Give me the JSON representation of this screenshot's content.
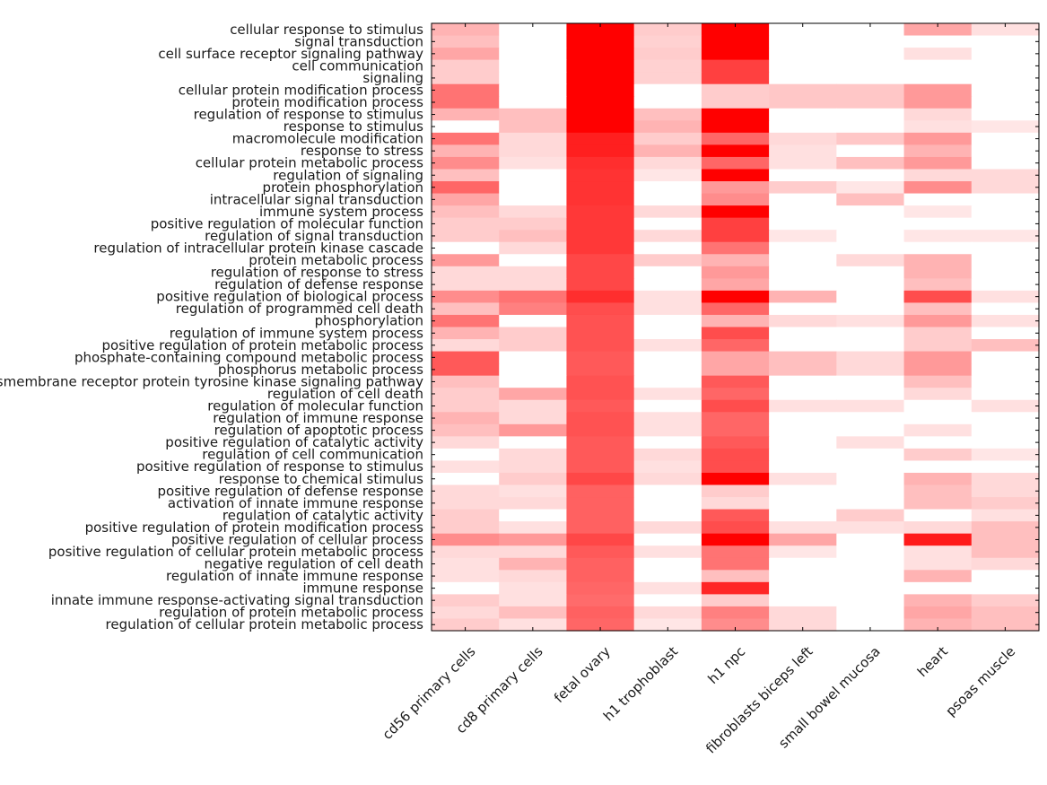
{
  "chart_data": {
    "type": "heatmap",
    "title": "",
    "xlabel": "",
    "ylabel": "",
    "colormap": {
      "low": "#ffffff",
      "high": "#ff0000"
    },
    "value_range": [
      0,
      1
    ],
    "columns": [
      "cd56 primary cells",
      "cd8 primary cells",
      "fetal ovary",
      "h1 trophoblast",
      "h1 npc",
      "fibroblasts biceps left",
      "small bowel mucosa",
      "heart",
      "psoas muscle"
    ],
    "rows": [
      "cellular response to stimulus",
      "signal transduction",
      "cell surface receptor signaling pathway",
      "cell communication",
      "signaling",
      "cellular protein modification process",
      "protein modification process",
      "regulation of response to stimulus",
      "response to stimulus",
      "macromolecule modification",
      "response to stress",
      "cellular protein metabolic process",
      "regulation of signaling",
      "protein phosphorylation",
      "intracellular signal transduction",
      "immune system process",
      "positive regulation of molecular function",
      "regulation of signal transduction",
      "regulation of intracellular protein kinase cascade",
      "protein metabolic process",
      "regulation of response to stress",
      "regulation of defense response",
      "positive regulation of biological process",
      "regulation of programmed cell death",
      "phosphorylation",
      "regulation of immune system process",
      "positive regulation of protein metabolic process",
      "phosphate-containing compound metabolic process",
      "phosphorus metabolic process",
      "transmembrane receptor protein tyrosine kinase signaling pathway",
      "regulation of cell death",
      "regulation of molecular function",
      "regulation of immune response",
      "regulation of apoptotic process",
      "positive regulation of catalytic activity",
      "regulation of cell communication",
      "positive regulation of response to stimulus",
      "response to chemical stimulus",
      "positive regulation of defense response",
      "activation of innate immune response",
      "regulation of catalytic activity",
      "positive regulation of protein modification process",
      "positive regulation of cellular process",
      "positive regulation of cellular protein metabolic process",
      "negative regulation of cell death",
      "regulation of innate immune response",
      "immune response",
      "innate immune response-activating signal transduction",
      "regulation of protein metabolic process",
      "regulation of cellular protein metabolic process"
    ],
    "values": [
      [
        0.3,
        0.0,
        1.0,
        0.2,
        1.0,
        0.0,
        0.0,
        0.35,
        0.12
      ],
      [
        0.25,
        0.0,
        1.0,
        0.18,
        1.0,
        0.0,
        0.0,
        0.0,
        0.0
      ],
      [
        0.35,
        0.0,
        1.0,
        0.2,
        1.0,
        0.0,
        0.0,
        0.12,
        0.0
      ],
      [
        0.2,
        0.0,
        1.0,
        0.18,
        0.75,
        0.0,
        0.0,
        0.0,
        0.0
      ],
      [
        0.2,
        0.0,
        1.0,
        0.18,
        0.75,
        0.0,
        0.0,
        0.0,
        0.0
      ],
      [
        0.55,
        0.0,
        1.0,
        0.0,
        0.2,
        0.22,
        0.22,
        0.4,
        0.0
      ],
      [
        0.55,
        0.0,
        1.0,
        0.0,
        0.2,
        0.22,
        0.22,
        0.4,
        0.0
      ],
      [
        0.3,
        0.25,
        1.0,
        0.25,
        1.0,
        0.0,
        0.0,
        0.15,
        0.0
      ],
      [
        0.0,
        0.25,
        1.0,
        0.3,
        1.0,
        0.0,
        0.0,
        0.12,
        0.1
      ],
      [
        0.55,
        0.15,
        0.88,
        0.2,
        0.6,
        0.15,
        0.22,
        0.4,
        0.0
      ],
      [
        0.3,
        0.15,
        0.88,
        0.3,
        1.0,
        0.12,
        0.0,
        0.3,
        0.0
      ],
      [
        0.45,
        0.12,
        0.82,
        0.15,
        0.6,
        0.12,
        0.25,
        0.4,
        0.0
      ],
      [
        0.25,
        0.0,
        0.8,
        0.1,
        1.0,
        0.0,
        0.0,
        0.15,
        0.15
      ],
      [
        0.6,
        0.0,
        0.8,
        0.0,
        0.4,
        0.2,
        0.1,
        0.45,
        0.15
      ],
      [
        0.35,
        0.0,
        0.8,
        0.0,
        0.45,
        0.0,
        0.25,
        0.0,
        0.0
      ],
      [
        0.25,
        0.15,
        0.78,
        0.15,
        1.0,
        0.0,
        0.0,
        0.1,
        0.0
      ],
      [
        0.2,
        0.2,
        0.78,
        0.0,
        0.75,
        0.0,
        0.0,
        0.0,
        0.0
      ],
      [
        0.2,
        0.25,
        0.78,
        0.15,
        0.75,
        0.1,
        0.0,
        0.1,
        0.1
      ],
      [
        0.0,
        0.15,
        0.78,
        0.0,
        0.55,
        0.0,
        0.0,
        0.0,
        0.0
      ],
      [
        0.4,
        0.0,
        0.72,
        0.2,
        0.3,
        0.0,
        0.15,
        0.3,
        0.0
      ],
      [
        0.15,
        0.15,
        0.72,
        0.0,
        0.4,
        0.0,
        0.0,
        0.3,
        0.0
      ],
      [
        0.15,
        0.15,
        0.72,
        0.0,
        0.35,
        0.0,
        0.0,
        0.25,
        0.0
      ],
      [
        0.45,
        0.55,
        0.82,
        0.12,
        1.0,
        0.3,
        0.0,
        0.7,
        0.12
      ],
      [
        0.25,
        0.5,
        0.7,
        0.12,
        0.6,
        0.0,
        0.0,
        0.25,
        0.0
      ],
      [
        0.55,
        0.0,
        0.68,
        0.0,
        0.3,
        0.15,
        0.12,
        0.4,
        0.12
      ],
      [
        0.3,
        0.2,
        0.68,
        0.0,
        0.7,
        0.0,
        0.0,
        0.2,
        0.0
      ],
      [
        0.15,
        0.2,
        0.68,
        0.12,
        0.6,
        0.0,
        0.0,
        0.2,
        0.25
      ],
      [
        0.65,
        0.0,
        0.65,
        0.0,
        0.35,
        0.25,
        0.15,
        0.4,
        0.0
      ],
      [
        0.65,
        0.0,
        0.65,
        0.0,
        0.35,
        0.25,
        0.15,
        0.4,
        0.0
      ],
      [
        0.25,
        0.0,
        0.68,
        0.0,
        0.65,
        0.0,
        0.0,
        0.25,
        0.0
      ],
      [
        0.2,
        0.35,
        0.68,
        0.12,
        0.6,
        0.0,
        0.0,
        0.15,
        0.0
      ],
      [
        0.2,
        0.15,
        0.65,
        0.0,
        0.7,
        0.12,
        0.12,
        0.0,
        0.12
      ],
      [
        0.3,
        0.15,
        0.68,
        0.12,
        0.6,
        0.0,
        0.0,
        0.0,
        0.0
      ],
      [
        0.25,
        0.4,
        0.68,
        0.12,
        0.6,
        0.0,
        0.0,
        0.12,
        0.0
      ],
      [
        0.15,
        0.0,
        0.65,
        0.0,
        0.65,
        0.0,
        0.12,
        0.0,
        0.0
      ],
      [
        0.0,
        0.15,
        0.65,
        0.15,
        0.7,
        0.0,
        0.0,
        0.2,
        0.1
      ],
      [
        0.12,
        0.15,
        0.65,
        0.12,
        0.7,
        0.0,
        0.0,
        0.0,
        0.0
      ],
      [
        0.0,
        0.2,
        0.72,
        0.15,
        1.0,
        0.12,
        0.0,
        0.3,
        0.15
      ],
      [
        0.15,
        0.12,
        0.62,
        0.0,
        0.2,
        0.0,
        0.0,
        0.25,
        0.15
      ],
      [
        0.15,
        0.15,
        0.62,
        0.0,
        0.15,
        0.0,
        0.0,
        0.25,
        0.2
      ],
      [
        0.2,
        0.0,
        0.62,
        0.0,
        0.65,
        0.0,
        0.2,
        0.0,
        0.12
      ],
      [
        0.2,
        0.12,
        0.62,
        0.15,
        0.7,
        0.12,
        0.12,
        0.15,
        0.25
      ],
      [
        0.45,
        0.4,
        0.72,
        0.0,
        1.0,
        0.35,
        0.0,
        0.9,
        0.25
      ],
      [
        0.15,
        0.15,
        0.65,
        0.12,
        0.55,
        0.1,
        0.0,
        0.12,
        0.25
      ],
      [
        0.12,
        0.3,
        0.62,
        0.0,
        0.55,
        0.0,
        0.0,
        0.12,
        0.15
      ],
      [
        0.12,
        0.15,
        0.62,
        0.0,
        0.25,
        0.0,
        0.0,
        0.3,
        0.0
      ],
      [
        0.0,
        0.12,
        0.6,
        0.12,
        0.85,
        0.0,
        0.0,
        0.0,
        0.0
      ],
      [
        0.2,
        0.12,
        0.58,
        0.0,
        0.2,
        0.0,
        0.0,
        0.3,
        0.2
      ],
      [
        0.15,
        0.25,
        0.62,
        0.15,
        0.5,
        0.15,
        0.0,
        0.35,
        0.25
      ],
      [
        0.2,
        0.12,
        0.6,
        0.1,
        0.45,
        0.15,
        0.0,
        0.3,
        0.25
      ]
    ]
  }
}
